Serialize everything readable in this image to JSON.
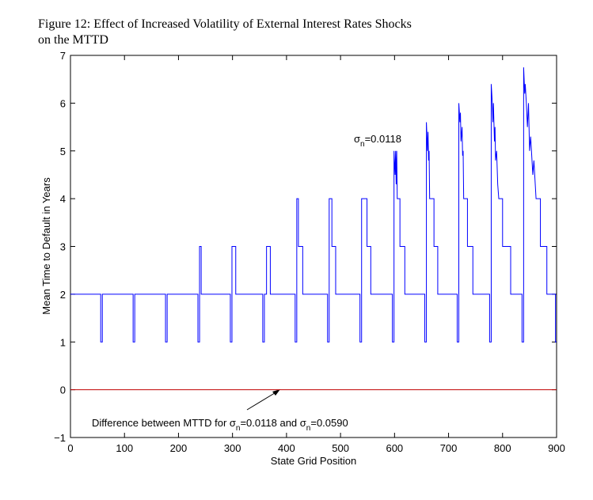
{
  "chart_data": {
    "type": "line",
    "title": [
      "Figure 12: Effect of Increased Volatility of External Interest Rates Shocks",
      "on the MTTD"
    ],
    "x_label": "State Grid Position",
    "y_label": "Mean Time to Default in Years",
    "xlim": [
      0,
      900
    ],
    "xticks": [
      0,
      100,
      200,
      300,
      400,
      500,
      600,
      700,
      800,
      900
    ],
    "ylim": [
      -1,
      7
    ],
    "yticks": [
      {
        "value": -1,
        "label": "−1"
      },
      0,
      1,
      2,
      3,
      4,
      5,
      6,
      7
    ],
    "grid": false,
    "annotations": [
      {
        "parts": [
          "σ",
          "n",
          "=0.0118"
        ]
      },
      {
        "parts": [
          "Difference between MTTD for σ",
          "n",
          "=0.0118 and σ",
          "n",
          "=0.0590"
        ]
      }
    ],
    "series": [
      {
        "color": "#0000ff",
        "x": [
          0,
          56,
          56,
          59,
          59,
          116,
          116,
          119,
          119,
          176,
          176,
          179,
          179,
          236,
          236,
          239,
          239,
          242,
          242,
          296,
          296,
          299,
          299,
          306,
          306,
          356,
          356,
          359,
          359,
          363,
          363,
          370,
          370,
          416,
          416,
          419,
          419,
          422,
          422,
          430,
          430,
          476,
          476,
          479,
          479,
          484,
          484,
          491,
          491,
          536,
          536,
          539,
          539,
          549,
          549,
          556,
          556,
          596,
          596,
          599,
          599,
          601,
          602,
          603,
          604,
          605,
          610,
          610,
          619,
          619,
          656,
          656,
          659,
          659,
          661,
          662,
          663,
          664,
          665,
          673,
          673,
          680,
          680,
          716,
          716,
          719,
          719,
          721,
          722,
          723,
          725,
          726,
          727,
          728,
          735,
          735,
          745,
          745,
          776,
          776,
          779,
          779,
          781,
          782,
          783,
          785,
          786,
          787,
          789,
          791,
          793,
          800,
          800,
          815,
          815,
          836,
          836,
          839,
          839,
          841,
          842,
          844,
          846,
          848,
          850,
          852,
          856,
          858,
          862,
          870,
          870,
          882,
          882,
          898,
          898,
          900
        ],
        "values": [
          2,
          2,
          1,
          1,
          2,
          2,
          1,
          1,
          2,
          2,
          1,
          1,
          2,
          2,
          1,
          1,
          3,
          3,
          2,
          2,
          1,
          1,
          3,
          3,
          2,
          2,
          1,
          1,
          2,
          2,
          3,
          3,
          2,
          2,
          1,
          1,
          4,
          4,
          3,
          3,
          2,
          2,
          1,
          1,
          4,
          4,
          3,
          3,
          2,
          2,
          1,
          1,
          4,
          4,
          3,
          3,
          2,
          2,
          1,
          1,
          5,
          4.5,
          5,
          4.3,
          5,
          4,
          4,
          3,
          3,
          2,
          2,
          1,
          1,
          5.6,
          5,
          5.4,
          4.8,
          5,
          4,
          4,
          3,
          3,
          2,
          2,
          1,
          1,
          6,
          5.6,
          5.8,
          5.2,
          5.5,
          4.9,
          5,
          4,
          4,
          3,
          3,
          2,
          2,
          1,
          1,
          6.4,
          6,
          5.6,
          6,
          5.2,
          5.5,
          4.8,
          5,
          4.3,
          4,
          4,
          3,
          3,
          2,
          2,
          1,
          1,
          6.75,
          6.2,
          6.4,
          6,
          5.5,
          6,
          5,
          5.3,
          4.5,
          4.8,
          4,
          4,
          3,
          3,
          2,
          2,
          1,
          1
        ]
      },
      {
        "color": "#c00000",
        "x": [
          0,
          900
        ],
        "values": [
          0,
          0
        ]
      }
    ]
  }
}
